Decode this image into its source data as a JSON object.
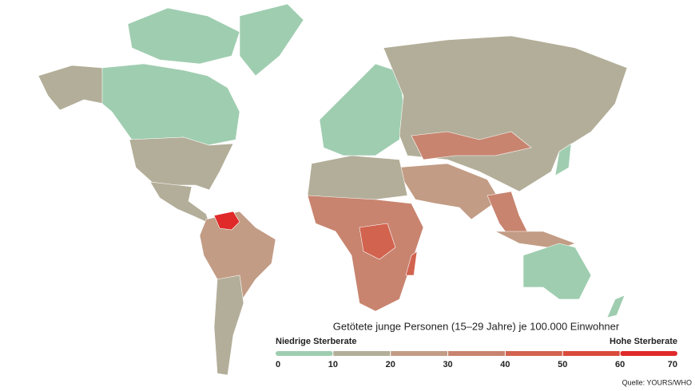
{
  "legend": {
    "title": "Getötete junge Personen (15–29 Jahre) je 100.000 Einwohner",
    "low_label": "Niedrige Sterberate",
    "high_label": "Hohe Sterberate",
    "ticks": [
      0,
      10,
      20,
      30,
      40,
      50,
      60,
      70
    ],
    "colors": [
      "#9fcdb0",
      "#b3ae99",
      "#c29c85",
      "#c8846f",
      "#d2634f",
      "#da4a3c",
      "#e02a2a"
    ]
  },
  "source": "Quelle: YOURS/WHO"
}
